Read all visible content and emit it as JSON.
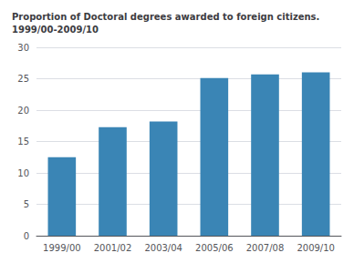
{
  "chart_data": {
    "type": "bar",
    "title": "Proportion of Doctoral degrees awarded to foreign citizens.\n1999/00-2009/10",
    "categories": [
      "1999/00",
      "2001/02",
      "2003/04",
      "2005/06",
      "2007/08",
      "2009/10"
    ],
    "values": [
      12.5,
      17.3,
      18.2,
      25.1,
      25.7,
      26.0
    ],
    "color": "#3a85b5",
    "ylim": [
      0,
      30
    ],
    "yticks": [
      0,
      5,
      10,
      15,
      20,
      25,
      30
    ],
    "grid": true
  }
}
